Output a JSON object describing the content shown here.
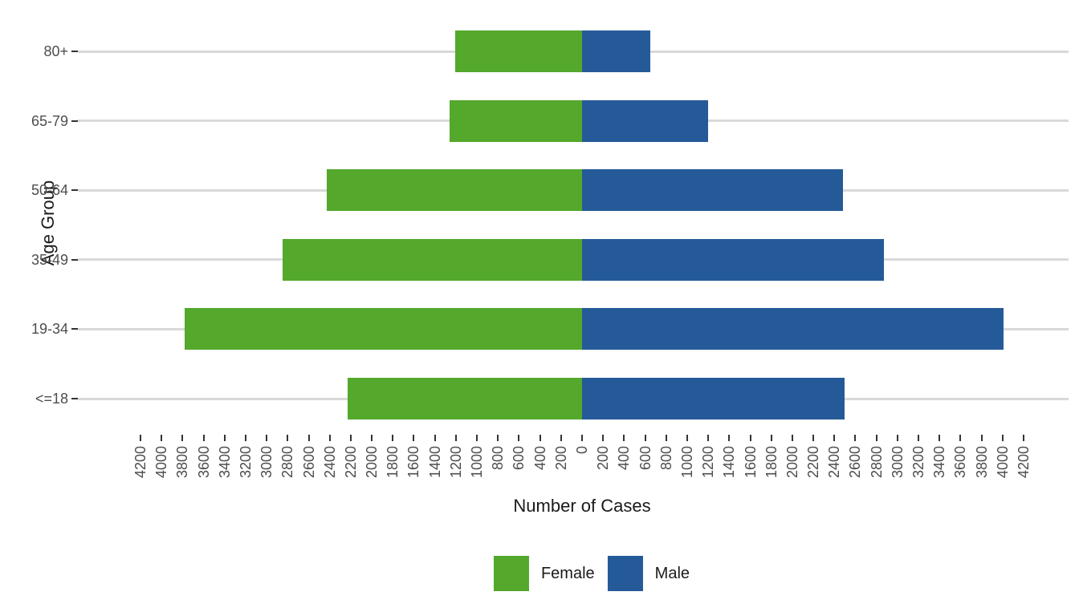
{
  "chart_data": {
    "type": "bar",
    "variant": "diverging-horizontal-population-pyramid",
    "title": "",
    "xlabel": "Number of Cases",
    "ylabel": "Age Group",
    "categories_top_to_bottom": [
      "80+",
      "65-79",
      "50-64",
      "35-49",
      "19-34",
      "<=18"
    ],
    "series": [
      {
        "name": "Female",
        "side": "left",
        "color": "#54A82C",
        "values": [
          1210,
          1260,
          2430,
          2850,
          3780,
          2230
        ]
      },
      {
        "name": "Male",
        "side": "right",
        "color": "#255A98",
        "values": [
          650,
          1200,
          2480,
          2870,
          4010,
          2500
        ]
      }
    ],
    "x_axis": {
      "min": -4200,
      "max": 4200,
      "step": 200,
      "labels_are_absolute_values": true,
      "tick_labels": [
        "4200",
        "4000",
        "3800",
        "3600",
        "3400",
        "3200",
        "3000",
        "2800",
        "2600",
        "2400",
        "2200",
        "2000",
        "1800",
        "1600",
        "1400",
        "1200",
        "1000",
        "800",
        "600",
        "400",
        "200",
        "0",
        "200",
        "400",
        "600",
        "800",
        "1000",
        "1200",
        "1400",
        "1600",
        "1800",
        "2000",
        "2200",
        "2400",
        "2600",
        "2800",
        "3000",
        "3200",
        "3400",
        "3600",
        "3800",
        "4000",
        "4200"
      ]
    },
    "grid": "horizontal-major-only",
    "gridline_color": "#D9D9D9",
    "background_color": "#FFFFFF",
    "axis_text_color": "#4D4D4D",
    "legend_position": "bottom",
    "legend": [
      {
        "label": "Female",
        "color": "#54A82C"
      },
      {
        "label": "Male",
        "color": "#255A98"
      }
    ]
  }
}
